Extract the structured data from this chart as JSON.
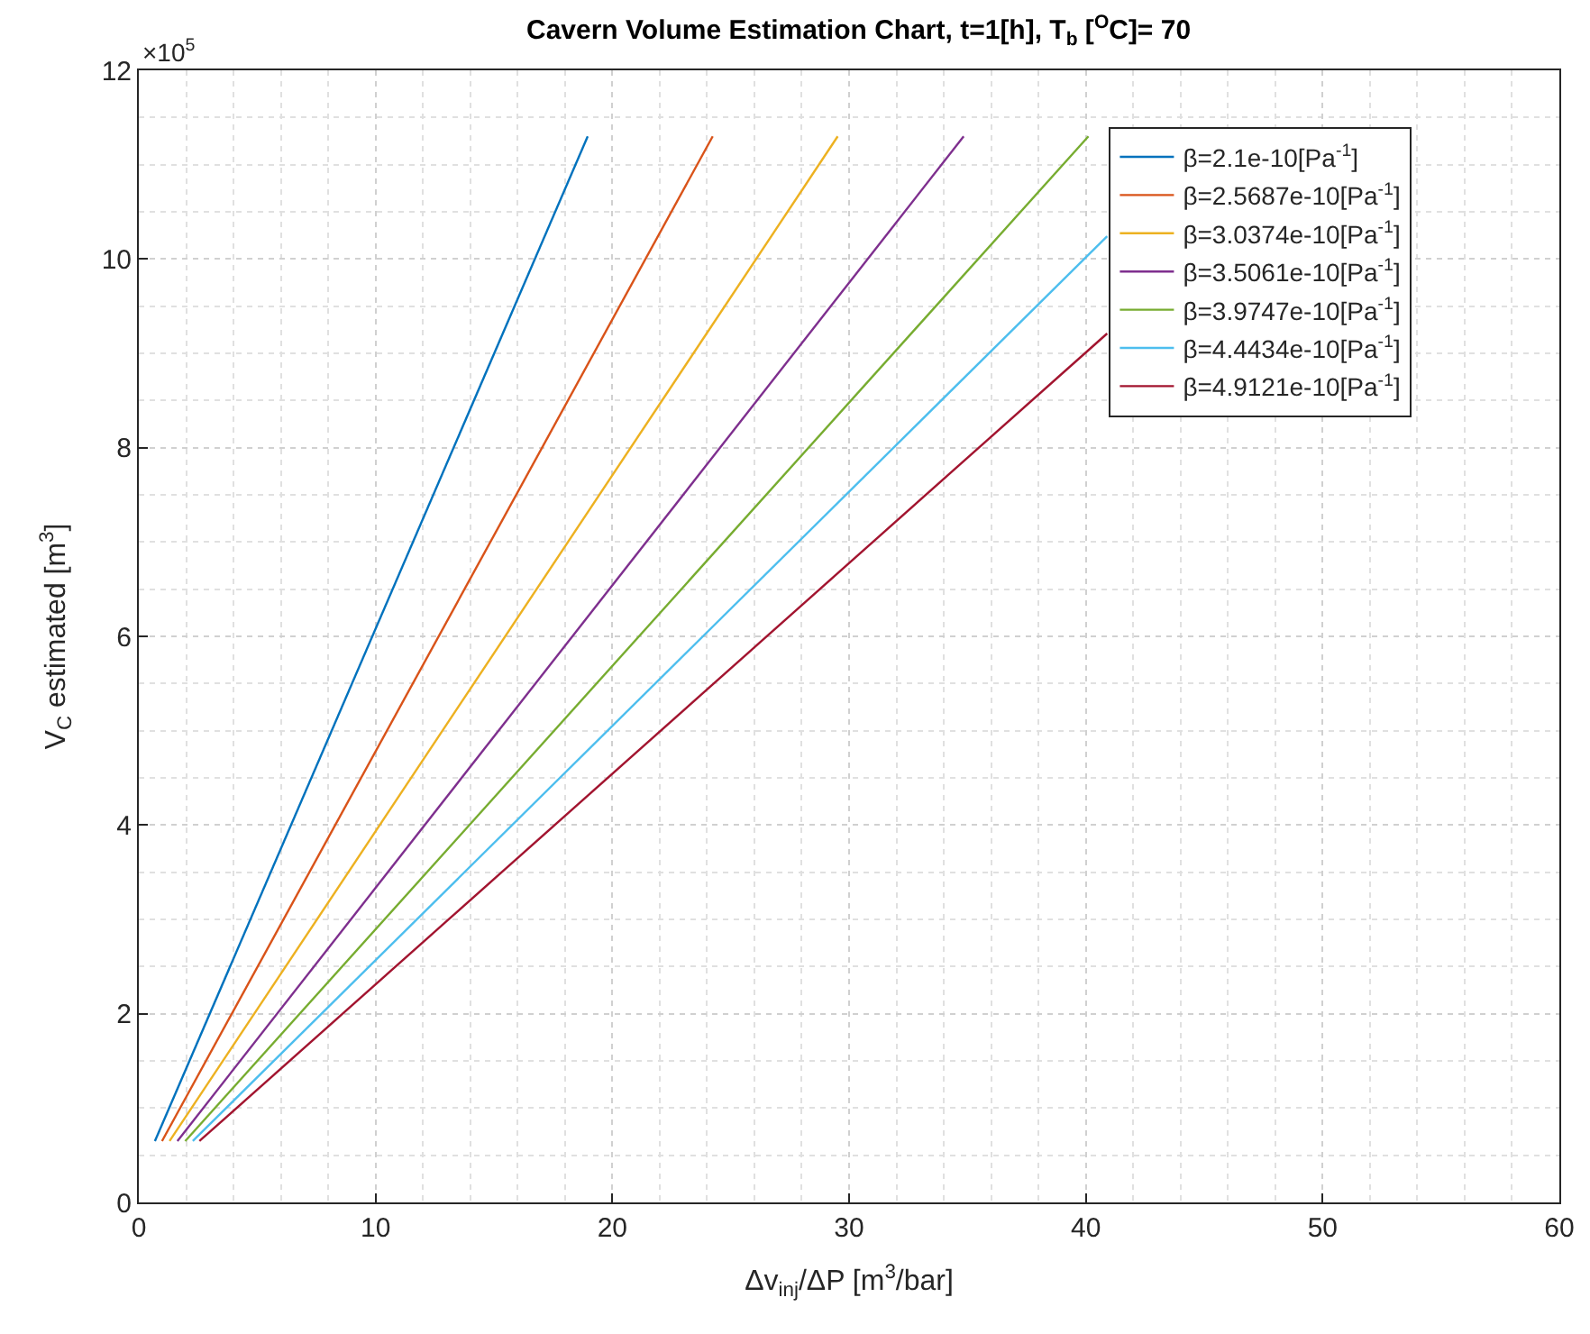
{
  "chart_data": {
    "type": "line",
    "title": "Cavern Volume Estimation Chart, t=1[h], T$_{b}$ [$^{O}$C]= 70",
    "xlabel": "Δv$_{inj}$/ΔP [m$^{3}$/bar]",
    "ylabel": "V$_{C}$ estimated [m$^{3}$]",
    "annotations": [
      "×10$^{5}$"
    ],
    "xlim": [
      0,
      60
    ],
    "xticks": [
      0,
      10,
      20,
      30,
      40,
      50,
      60
    ],
    "ylim": [
      0,
      12
    ],
    "yticks": [
      0,
      2,
      4,
      6,
      8,
      10,
      12
    ],
    "grid": true,
    "legend": "top right",
    "marker": "none",
    "line_style": "solid",
    "series": [
      {
        "name": "β=2.1e-10[Pa$^{-1}$]",
        "color": "#0072bd",
        "x": [
          0.68,
          18.96
        ],
        "values": [
          0.65,
          11.3
        ]
      },
      {
        "name": "β=2.5687e-10[Pa$^{-1}$]",
        "color": "#d95319",
        "x": [
          0.98,
          24.24
        ],
        "values": [
          0.65,
          11.3
        ]
      },
      {
        "name": "β=3.0374e-10[Pa$^{-1}$]",
        "color": "#edb120",
        "x": [
          1.3,
          29.52
        ],
        "values": [
          0.65,
          11.3
        ]
      },
      {
        "name": "β=3.5061e-10[Pa$^{-1}$]",
        "color": "#7e2f8e",
        "x": [
          1.63,
          34.84
        ],
        "values": [
          0.65,
          11.3
        ]
      },
      {
        "name": "β=3.9747e-10[Pa$^{-1}$]",
        "color": "#77ac30",
        "x": [
          1.96,
          40.11
        ],
        "values": [
          0.65,
          11.3
        ]
      },
      {
        "name": "β=4.4434e-10[Pa$^{-1}$]",
        "color": "#4dbeee",
        "x": [
          2.28,
          40.9
        ],
        "values": [
          0.65,
          10.24
        ]
      },
      {
        "name": "β=4.9121e-10[Pa$^{-1}$]",
        "color": "#a2142f",
        "x": [
          2.56,
          40.9
        ],
        "values": [
          0.65,
          9.21
        ]
      }
    ]
  }
}
